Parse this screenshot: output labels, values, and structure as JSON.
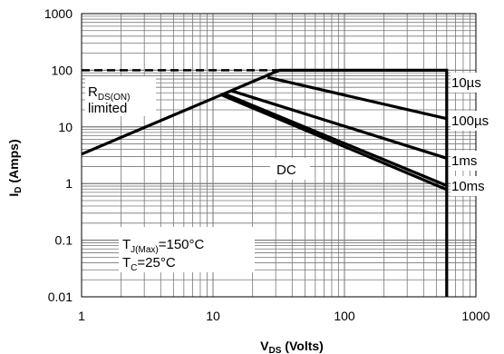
{
  "chart_data": {
    "type": "line",
    "xscale": "log",
    "yscale": "log",
    "xlim": [
      1,
      1000
    ],
    "ylim": [
      0.01,
      1000
    ],
    "xticks": [
      "1",
      "10",
      "100",
      "1000"
    ],
    "yticks": [
      "1000",
      "100",
      "10",
      "1",
      "0.1",
      "0.01"
    ],
    "xlabel": {
      "main": "V",
      "sub": "DS",
      "rest": " (Volts)"
    },
    "ylabel": {
      "main": "I",
      "sub": "D",
      "rest": " (Amps)"
    },
    "grid": true,
    "series": [
      {
        "name": "10µs",
        "points": [
          [
            1,
            3.3
          ],
          [
            32,
            100
          ],
          [
            600,
            100
          ],
          [
            600,
            0.01
          ]
        ]
      },
      {
        "name": "100µs",
        "points": [
          [
            26,
            75
          ],
          [
            600,
            14
          ]
        ]
      },
      {
        "name": "1ms",
        "points": [
          [
            14,
            43
          ],
          [
            600,
            2.8
          ]
        ]
      },
      {
        "name": "10ms",
        "points": [
          [
            12,
            39
          ],
          [
            600,
            0.92
          ]
        ]
      },
      {
        "name": "DC",
        "points": [
          [
            11.5,
            37
          ],
          [
            600,
            0.78
          ]
        ]
      }
    ],
    "current_limit": {
      "y": 100,
      "x": [
        1,
        32
      ]
    },
    "annotations": {
      "rds_main": "R",
      "rds_sub": "DS(ON)",
      "rds_limited": "limited",
      "dc": "DC",
      "tj_main": "T",
      "tj_sub": "J(Max)",
      "tj_value": "=150°C",
      "tc_main": "T",
      "tc_sub": "C",
      "tc_value": "=25°C",
      "label_10us": "10µs",
      "label_100us": "100µs",
      "label_1ms": "1ms",
      "label_10ms": "10ms"
    }
  }
}
